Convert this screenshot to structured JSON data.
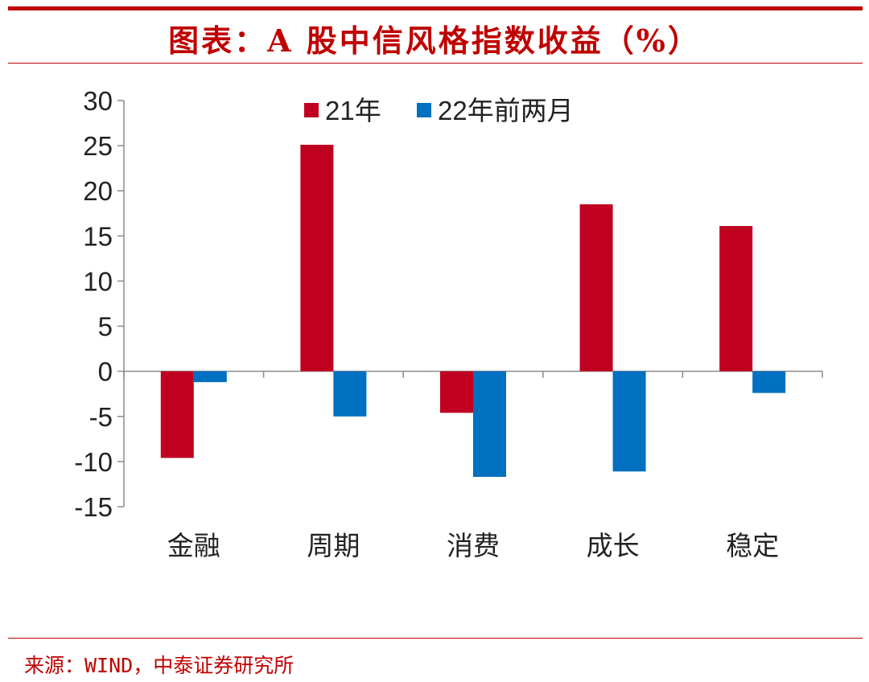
{
  "header": {
    "title": "图表：A 股中信风格指数收益（%）"
  },
  "footer": {
    "source": "来源：WIND，中泰证券研究所"
  },
  "colors": {
    "accent": "#c00000",
    "series_21": "#c00020",
    "series_22": "#0070c0",
    "axis": "#8c8c8c"
  },
  "chart_data": {
    "type": "bar",
    "title": "图表：A 股中信风格指数收益（%）",
    "xlabel": "",
    "ylabel": "",
    "ylim": [
      -15,
      30
    ],
    "yticks": [
      30,
      25,
      20,
      15,
      10,
      5,
      0,
      -5,
      -10,
      -15
    ],
    "categories": [
      "金融",
      "周期",
      "消费",
      "成长",
      "稳定"
    ],
    "series": [
      {
        "name": "21年",
        "values": [
          -9.6,
          25.1,
          -4.6,
          18.5,
          16.1
        ]
      },
      {
        "name": "22年前两月",
        "values": [
          -1.2,
          -5.0,
          -11.7,
          -11.1,
          -2.4
        ]
      }
    ],
    "legend": "top-center",
    "grid": false
  }
}
